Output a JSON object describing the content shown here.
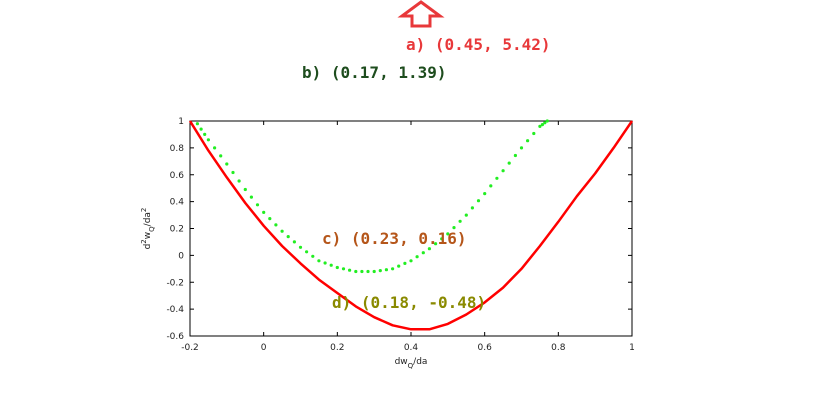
{
  "chart_data": {
    "type": "line",
    "title": "",
    "xlabel": "dw_Q/da",
    "ylabel": "d^2w_Q/da^2",
    "xlim": [
      -0.2,
      1.0
    ],
    "ylim": [
      -0.6,
      1.0
    ],
    "x_ticks": [
      "-0.2",
      "0",
      "0.2",
      "0.4",
      "0.6",
      "0.8",
      "1"
    ],
    "y_ticks": [
      "-0.6",
      "-0.4",
      "-0.2",
      "0",
      "0.2",
      "0.4",
      "0.6",
      "0.8",
      "1"
    ],
    "grid": false,
    "series": [
      {
        "style": "solid",
        "color": "#ff0000",
        "x": [
          -0.2,
          -0.15,
          -0.1,
          -0.05,
          0.0,
          0.05,
          0.1,
          0.15,
          0.2,
          0.25,
          0.3,
          0.35,
          0.4,
          0.45,
          0.5,
          0.55,
          0.6,
          0.65,
          0.7,
          0.75,
          0.8,
          0.85,
          0.9,
          0.95,
          1.0
        ],
        "y": [
          1.0,
          0.78,
          0.58,
          0.39,
          0.22,
          0.07,
          -0.06,
          -0.18,
          -0.28,
          -0.38,
          -0.46,
          -0.52,
          -0.55,
          -0.55,
          -0.51,
          -0.44,
          -0.35,
          -0.24,
          -0.1,
          0.07,
          0.25,
          0.44,
          0.61,
          0.8,
          1.0
        ]
      },
      {
        "style": "dotted",
        "color": "#22ee22",
        "x": [
          -0.18,
          -0.15,
          -0.1,
          -0.05,
          0.0,
          0.05,
          0.1,
          0.15,
          0.2,
          0.25,
          0.3,
          0.35,
          0.4,
          0.45,
          0.5,
          0.55,
          0.6,
          0.65,
          0.7,
          0.75,
          0.77
        ],
        "y": [
          0.98,
          0.86,
          0.68,
          0.49,
          0.32,
          0.18,
          0.06,
          -0.04,
          -0.09,
          -0.12,
          -0.12,
          -0.1,
          -0.04,
          0.05,
          0.16,
          0.3,
          0.46,
          0.63,
          0.8,
          0.96,
          1.0
        ]
      }
    ],
    "annotations": [
      {
        "id": "a",
        "text": "a) (0.45, 5.42)",
        "color": "#e8383a"
      },
      {
        "id": "b",
        "text": "b) (0.17, 1.39)",
        "color": "#1e4d1e"
      },
      {
        "id": "c",
        "text": "c) (0.23, 0.16)",
        "color": "#b5561a"
      },
      {
        "id": "d",
        "text": "d) (0.18, -0.48)",
        "color": "#8a8a00"
      }
    ],
    "marker": {
      "shape": "up-arrow-outline",
      "color": "#e8383a"
    }
  }
}
